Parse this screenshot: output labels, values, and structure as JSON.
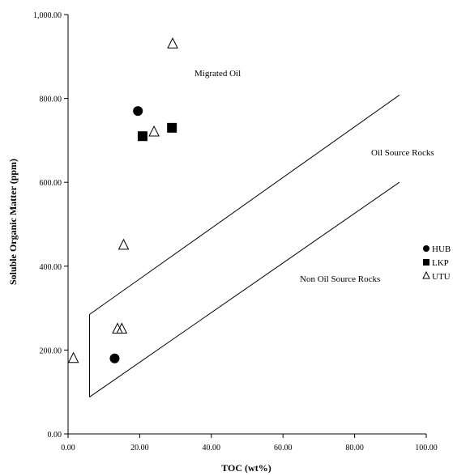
{
  "chart_data": {
    "type": "scatter",
    "title": "",
    "xlabel": "TOC (wt%)",
    "ylabel": "Soluble Organic Matter (ppm)",
    "xlim": [
      0,
      100
    ],
    "ylim": [
      0,
      1000
    ],
    "x_ticks": [
      "0.00",
      "20.00",
      "40.00",
      "60.00",
      "80.00",
      "100.00"
    ],
    "y_ticks": [
      "0.00",
      "200.00",
      "400.00",
      "600.00",
      "800.00",
      "1,000.00"
    ],
    "series": [
      {
        "name": "HUB",
        "marker": "circle",
        "color": "#000000",
        "x": [
          19.5,
          13.0
        ],
        "y": [
          770,
          180
        ]
      },
      {
        "name": "LKP",
        "marker": "square",
        "color": "#000000",
        "x": [
          20.8,
          29.0
        ],
        "y": [
          710,
          730
        ]
      },
      {
        "name": "UTU",
        "marker": "triangle-open",
        "color": "#000000",
        "x": [
          29.2,
          24.0,
          15.5,
          13.8,
          15.0,
          1.5
        ],
        "y": [
          930,
          720,
          450,
          250,
          250,
          180
        ]
      }
    ],
    "boundary_lines": [
      {
        "x": [
          6,
          92.5
        ],
        "y": [
          285,
          808
        ]
      },
      {
        "x": [
          6,
          92.5
        ],
        "y": [
          88,
          600
        ]
      },
      {
        "x": [
          6,
          6
        ],
        "y": [
          88,
          285
        ]
      }
    ],
    "annotations": [
      "Migrated Oil",
      "Oil Source Rocks",
      "Non Oil Source Rocks"
    ],
    "legend_position": "right"
  }
}
